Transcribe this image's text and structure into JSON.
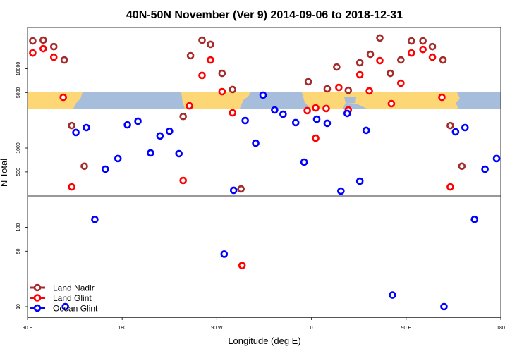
{
  "chart_data": {
    "type": "scatter",
    "title": "40N-50N November (Ver 9)   2014-09-06 to 2018-12-31",
    "xlabel": "Longitude (deg E)",
    "ylabel": "N Total",
    "x_note": "unwrapped longitude, 90 = 90E ... 540 = 180 (after one full wrap)",
    "xlim": [
      90,
      540
    ],
    "yscale": "log",
    "ylim": [
      6,
      40000
    ],
    "x_ticks": [
      {
        "value": 90,
        "label": "90 E"
      },
      {
        "value": 180,
        "label": "180"
      },
      {
        "value": 270,
        "label": "90 W"
      },
      {
        "value": 360,
        "label": "0"
      },
      {
        "value": 450,
        "label": "90 E"
      },
      {
        "value": 540,
        "label": "180"
      }
    ],
    "y_ticks": [
      {
        "value": 10,
        "label": "10"
      },
      {
        "value": 50,
        "label": "50"
      },
      {
        "value": 100,
        "label": "100"
      },
      {
        "value": 500,
        "label": "500"
      },
      {
        "value": 1000,
        "label": "1000"
      },
      {
        "value": 5000,
        "label": "5000"
      },
      {
        "value": 10000,
        "label": "10000"
      }
    ],
    "legend_position": "bottom-left",
    "series": [
      {
        "name": "Land Nadir",
        "color": "#A52A2A",
        "x": [
          95,
          105,
          115,
          125,
          132,
          144,
          238,
          245,
          256,
          264,
          275,
          285,
          293,
          357,
          375,
          384,
          395,
          406,
          416,
          425,
          435,
          445,
          455,
          466,
          475,
          485,
          492,
          503
        ],
        "y": [
          22400,
          22900,
          19000,
          12900,
          1920,
          590,
          2500,
          14600,
          22900,
          20300,
          8750,
          5470,
          305,
          6850,
          5580,
          10500,
          5350,
          11900,
          15200,
          24400,
          8750,
          12900,
          22400,
          22400,
          19000,
          12900,
          1920,
          590
        ]
      },
      {
        "name": "Land Glint",
        "color": "#FF0000",
        "x": [
          95,
          105,
          115,
          124,
          132,
          238,
          244,
          256,
          264,
          275,
          285,
          294,
          356,
          364,
          364,
          374,
          386,
          395,
          406,
          415,
          425,
          436,
          445,
          455,
          466,
          475,
          484,
          492
        ],
        "y": [
          15800,
          17900,
          14000,
          4360,
          324,
          390,
          3410,
          8240,
          12900,
          5140,
          2780,
          33,
          2960,
          3210,
          1330,
          3150,
          5810,
          3020,
          8400,
          5250,
          12650,
          3630,
          6570,
          15800,
          17500,
          14000,
          4360,
          324
        ]
      },
      {
        "name": "Ocean Glint",
        "color": "#0000FF",
        "x": [
          126,
          136,
          146,
          154,
          164,
          176,
          185,
          195,
          207,
          216,
          225,
          234,
          277,
          286,
          297,
          307,
          314,
          325,
          333,
          345,
          353,
          365,
          375,
          388,
          394,
          406,
          412,
          437,
          486,
          497,
          506,
          515,
          525,
          536
        ],
        "y": [
          10,
          1570,
          1810,
          126,
          541,
          736,
          1960,
          2180,
          867,
          1420,
          1630,
          849,
          46,
          293,
          2220,
          1150,
          4640,
          3020,
          2670,
          2090,
          664,
          2310,
          2050,
          287,
          2730,
          382,
          1670,
          14,
          10,
          1600,
          1810,
          126,
          541,
          736
        ]
      }
    ]
  }
}
